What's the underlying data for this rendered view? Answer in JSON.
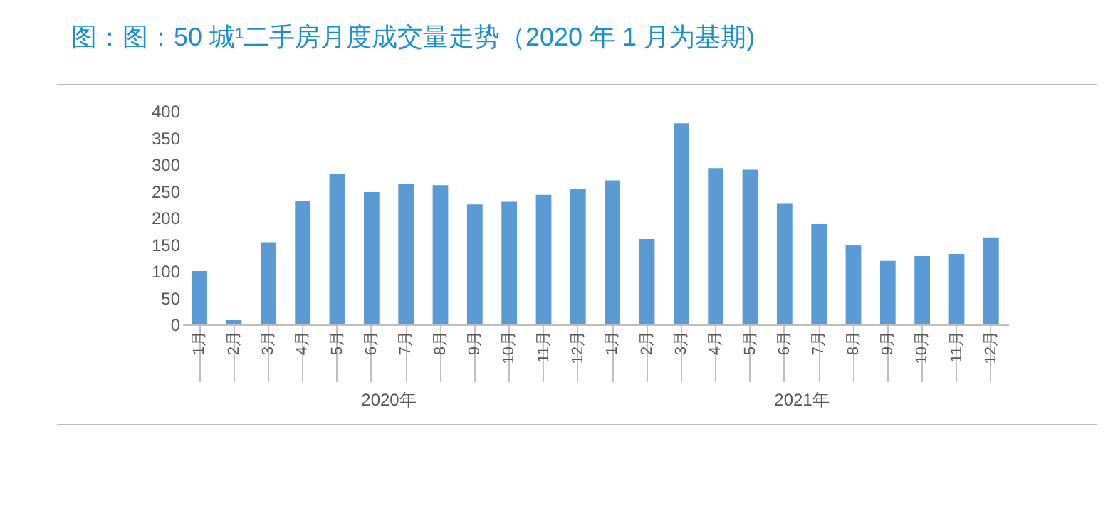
{
  "chart_data": {
    "type": "bar",
    "title": "图：图：50 城¹二手房月度成交量走势（2020 年 1 月为基期)",
    "categories": [
      "1月",
      "2月",
      "3月",
      "4月",
      "5月",
      "6月",
      "7月",
      "8月",
      "9月",
      "10月",
      "11月",
      "12月",
      "1月",
      "2月",
      "3月",
      "4月",
      "5月",
      "6月",
      "7月",
      "8月",
      "9月",
      "10月",
      "11月",
      "12月"
    ],
    "values": [
      100,
      8,
      154,
      232,
      282,
      248,
      263,
      261,
      225,
      230,
      243,
      254,
      270,
      160,
      377,
      293,
      290,
      226,
      188,
      148,
      119,
      128,
      132,
      163
    ],
    "color": "#5b9bd5",
    "ylim": [
      0,
      400
    ],
    "yticks": [
      0,
      50,
      100,
      150,
      200,
      250,
      300,
      350,
      400
    ],
    "annotations": [
      "2020年",
      "2021年"
    ],
    "grid": false
  }
}
